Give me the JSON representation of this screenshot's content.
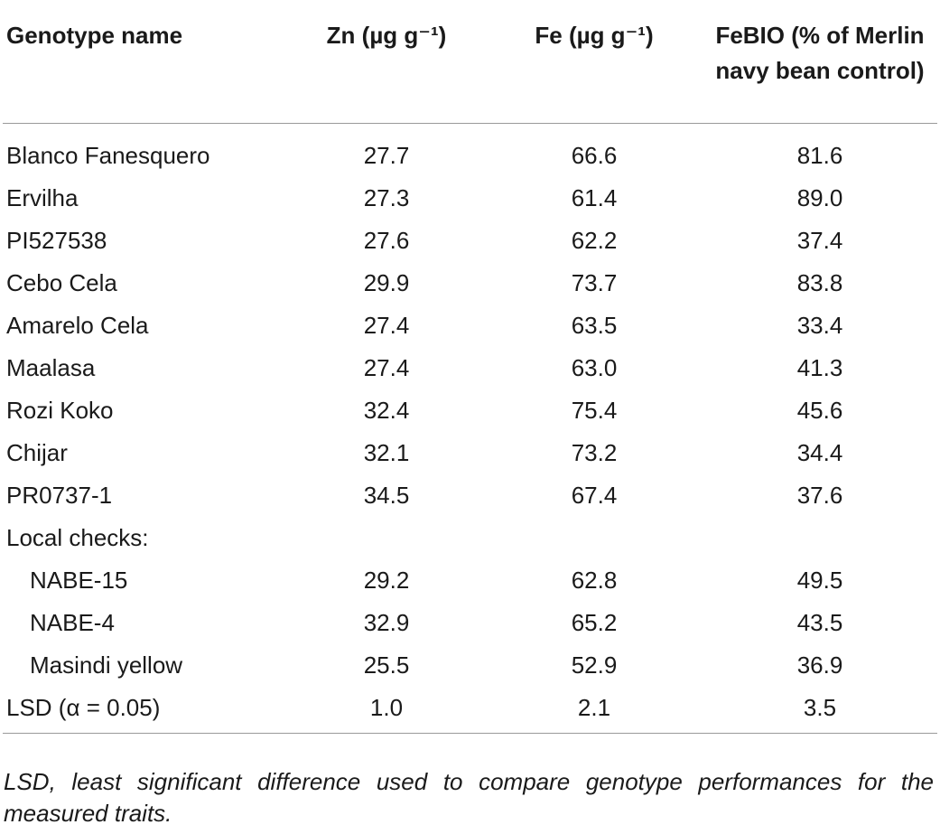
{
  "table": {
    "headers": {
      "genotype": "Genotype name",
      "zn": "Zn (µg g⁻¹)",
      "fe": "Fe (µg g⁻¹)",
      "febio": "FeBIO (% of Merlin navy bean control)"
    },
    "rows": [
      {
        "name": "Blanco Fanesquero",
        "zn": "27.7",
        "fe": "66.6",
        "febio": "81.6"
      },
      {
        "name": "Ervilha",
        "zn": "27.3",
        "fe": "61.4",
        "febio": "89.0"
      },
      {
        "name": "PI527538",
        "zn": "27.6",
        "fe": "62.2",
        "febio": "37.4"
      },
      {
        "name": "Cebo Cela",
        "zn": "29.9",
        "fe": "73.7",
        "febio": "83.8"
      },
      {
        "name": "Amarelo Cela",
        "zn": "27.4",
        "fe": "63.5",
        "febio": "33.4"
      },
      {
        "name": "Maalasa",
        "zn": "27.4",
        "fe": "63.0",
        "febio": "41.3"
      },
      {
        "name": "Rozi Koko",
        "zn": "32.4",
        "fe": "75.4",
        "febio": "45.6"
      },
      {
        "name": "Chijar",
        "zn": "32.1",
        "fe": "73.2",
        "febio": "34.4"
      },
      {
        "name": "PR0737-1",
        "zn": "34.5",
        "fe": "67.4",
        "febio": "37.6"
      }
    ],
    "group_label": "Local checks:",
    "local_checks": [
      {
        "name": "NABE-15",
        "zn": "29.2",
        "fe": "62.8",
        "febio": "49.5"
      },
      {
        "name": "NABE-4",
        "zn": "32.9",
        "fe": "65.2",
        "febio": "43.5"
      },
      {
        "name": "Masindi yellow",
        "zn": "25.5",
        "fe": "52.9",
        "febio": "36.9"
      }
    ],
    "lsd": {
      "name": "LSD (α = 0.05)",
      "zn": "1.0",
      "fe": "2.1",
      "febio": "3.5"
    }
  },
  "footnote": "LSD, least significant difference used to compare genotype performances for the measured traits."
}
